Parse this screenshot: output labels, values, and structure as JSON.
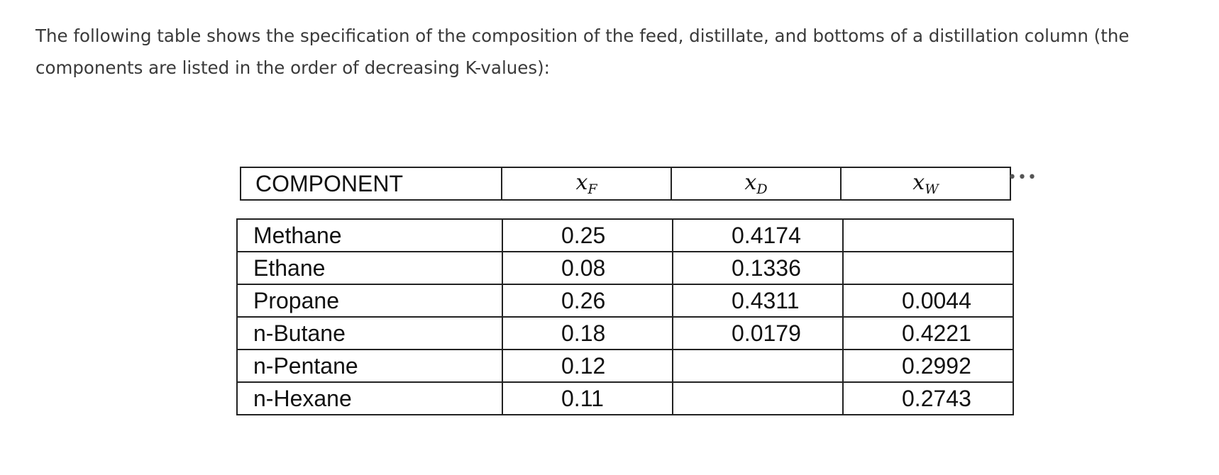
{
  "intro": "The following table shows the specification of the composition of the feed, distillate, and bottoms of a distillation column (the components are listed in the order of decreasing K-values):",
  "header": {
    "component": "COMPONENT",
    "xf": {
      "base": "x",
      "sub": "F"
    },
    "xd": {
      "base": "x",
      "sub": "D"
    },
    "xw": {
      "base": "x",
      "sub": "W"
    }
  },
  "rows": [
    {
      "name": "Methane",
      "xf": "0.25",
      "xd": "0.4174",
      "xw": ""
    },
    {
      "name": "Ethane",
      "xf": "0.08",
      "xd": "0.1336",
      "xw": ""
    },
    {
      "name": "Propane",
      "xf": "0.26",
      "xd": "0.4311",
      "xw": "0.0044"
    },
    {
      "name": "n-Butane",
      "xf": "0.18",
      "xd": "0.0179",
      "xw": "0.4221"
    },
    {
      "name": "n-Pentane",
      "xf": "0.12",
      "xd": "",
      "xw": "0.2992"
    },
    {
      "name": "n-Hexane",
      "xf": "0.11",
      "xd": "",
      "xw": "0.2743"
    }
  ],
  "more_icon": "more-options-icon"
}
